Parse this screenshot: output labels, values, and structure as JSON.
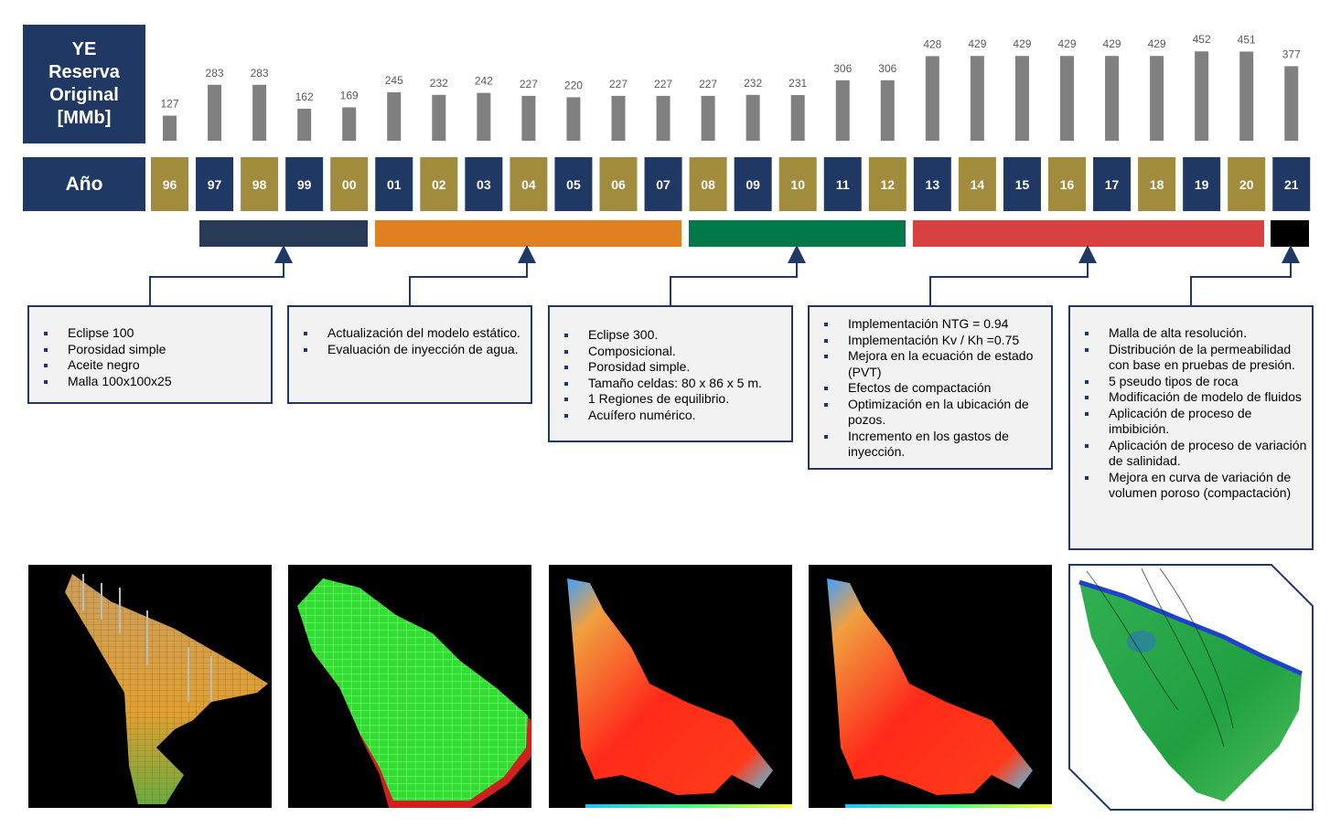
{
  "header": {
    "ye_label_lines": [
      "YE",
      "Reserva",
      "Original",
      "[MMb]"
    ],
    "year_label": "Año"
  },
  "chart_data": {
    "type": "bar",
    "ylabel": "YE Reserva Original [MMb]",
    "categories": [
      "96",
      "97",
      "98",
      "99",
      "00",
      "01",
      "02",
      "03",
      "04",
      "05",
      "06",
      "07",
      "08",
      "09",
      "10",
      "11",
      "12",
      "13",
      "14",
      "15",
      "16",
      "17",
      "18",
      "19",
      "20",
      "21"
    ],
    "values": [
      127,
      283,
      283,
      162,
      169,
      245,
      232,
      242,
      227,
      220,
      227,
      227,
      227,
      232,
      231,
      306,
      306,
      428,
      429,
      429,
      429,
      429,
      429,
      452,
      451,
      377
    ],
    "ylim": [
      0,
      460
    ],
    "bar_color": "#808080",
    "year_box_colors": [
      "#a08c3c",
      "#1f3864"
    ]
  },
  "phases": [
    {
      "name": "phase-1",
      "color": "#293a56"
    },
    {
      "name": "phase-2",
      "color": "#e08020"
    },
    {
      "name": "phase-3",
      "color": "#00784a"
    },
    {
      "name": "phase-4",
      "color": "#d94040"
    },
    {
      "name": "phase-5",
      "color": "#000000"
    }
  ],
  "notes": [
    {
      "items": [
        "Eclipse 100",
        "Porosidad simple",
        "Aceite negro",
        "Malla 100x100x25"
      ]
    },
    {
      "items": [
        "Actualización del modelo estático.",
        "Evaluación de inyección de agua."
      ]
    },
    {
      "items": [
        "Eclipse 300.",
        "Composicional.",
        "Porosidad simple.",
        "Tamaño celdas: 80 x 86 x 5 m.",
        "1 Regiones de equilibrio.",
        "Acuífero numérico."
      ]
    },
    {
      "items": [
        "Implementación NTG = 0.94",
        "Implementación Kv / Kh =0.75",
        "Mejora en la ecuación de estado (PVT)",
        "Efectos de compactación",
        "Optimización en la ubicación de pozos.",
        "Incremento en los gastos de inyección."
      ]
    },
    {
      "items": [
        "Malla de alta resolución.",
        "Distribución de la permeabilidad con base en pruebas de presión.",
        "5 pseudo tipos de roca",
        "Modificación de modelo de fluidos",
        "Aplicación de proceso de imbibición.",
        "Aplicación de proceso de variación de salinidad.",
        "Mejora en curva de variación de volumen poroso (compactación)"
      ]
    }
  ]
}
